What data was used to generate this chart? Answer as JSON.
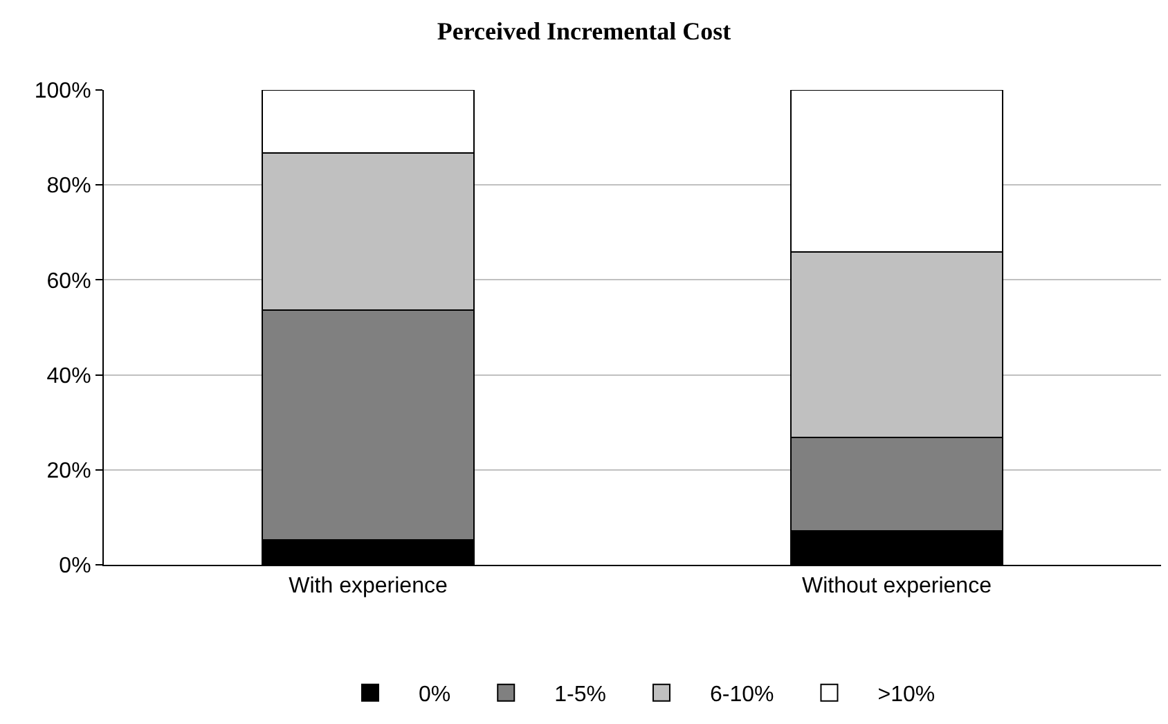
{
  "chart_data": {
    "type": "bar",
    "title": "Perceived Incremental Cost",
    "stacked": true,
    "categories": [
      "With experience",
      "Without experience"
    ],
    "series": [
      {
        "name": "0%",
        "color": "#000000",
        "values": [
          5.3,
          7.2
        ]
      },
      {
        "name": "1-5%",
        "color": "#808080",
        "values": [
          48.3,
          19.6
        ]
      },
      {
        "name": "6-10%",
        "color": "#c0c0c0",
        "values": [
          33.2,
          39.1
        ]
      },
      {
        "name": ">10%",
        "color": "#ffffff",
        "values": [
          13.2,
          34.1
        ]
      }
    ],
    "ylim": [
      0,
      100
    ],
    "yticks": [
      {
        "value": 0,
        "label": "0%"
      },
      {
        "value": 20,
        "label": "20%"
      },
      {
        "value": 40,
        "label": "40%"
      },
      {
        "value": 60,
        "label": "60%"
      },
      {
        "value": 80,
        "label": "80%"
      },
      {
        "value": 100,
        "label": "100%"
      }
    ],
    "grid": "y",
    "legend": "bottom"
  }
}
